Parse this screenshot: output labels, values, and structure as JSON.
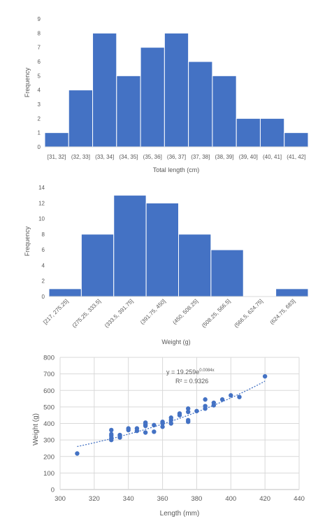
{
  "colors": {
    "bar": "#4472C4",
    "point": "#4472C4",
    "axis": "#d9d9d9",
    "text": "#595959"
  },
  "chart_data": [
    {
      "type": "bar",
      "categories": [
        "[31, 32]",
        "(32, 33]",
        "(33, 34]",
        "(34, 35]",
        "(35, 36]",
        "(36, 37]",
        "(37, 38]",
        "(38, 39]",
        "(39, 40]",
        "(40, 41]",
        "(41, 42]"
      ],
      "values": [
        1,
        4,
        8,
        5,
        7,
        8,
        6,
        5,
        2,
        2,
        1
      ],
      "ylim": [
        0,
        9
      ],
      "yticks": [
        0,
        1,
        2,
        3,
        4,
        5,
        6,
        7,
        8,
        9
      ],
      "xlabel": "Total length (cm)",
      "ylabel": "Frequency",
      "grid": false
    },
    {
      "type": "bar",
      "categories": [
        "[217, 275.25]",
        "(275.25, 333.5]",
        "(333.5, 391.75]",
        "(391.75, 450]",
        "(450, 508.25]",
        "(508.25, 566.5]",
        "(566.5, 624.75]",
        "(624.75, 683]"
      ],
      "values": [
        1,
        8,
        13,
        12,
        8,
        6,
        0,
        1
      ],
      "ylim": [
        0,
        14
      ],
      "yticks": [
        0,
        2,
        4,
        6,
        8,
        10,
        12,
        14
      ],
      "xlabel": "Weight (g)",
      "ylabel": "Frequency",
      "grid": false
    },
    {
      "type": "scatter",
      "points": [
        [
          310,
          218
        ],
        [
          330,
          300
        ],
        [
          330,
          310
        ],
        [
          330,
          325
        ],
        [
          330,
          335
        ],
        [
          330,
          360
        ],
        [
          335,
          315
        ],
        [
          335,
          325
        ],
        [
          335,
          330
        ],
        [
          340,
          360
        ],
        [
          340,
          370
        ],
        [
          345,
          355
        ],
        [
          345,
          370
        ],
        [
          350,
          345
        ],
        [
          350,
          385
        ],
        [
          350,
          395
        ],
        [
          350,
          405
        ],
        [
          355,
          350
        ],
        [
          355,
          390
        ],
        [
          360,
          380
        ],
        [
          360,
          400
        ],
        [
          360,
          405
        ],
        [
          360,
          410
        ],
        [
          365,
          400
        ],
        [
          365,
          420
        ],
        [
          365,
          435
        ],
        [
          370,
          450
        ],
        [
          370,
          460
        ],
        [
          375,
          410
        ],
        [
          375,
          420
        ],
        [
          375,
          470
        ],
        [
          375,
          490
        ],
        [
          380,
          475
        ],
        [
          385,
          490
        ],
        [
          385,
          505
        ],
        [
          385,
          545
        ],
        [
          390,
          510
        ],
        [
          390,
          525
        ],
        [
          395,
          545
        ],
        [
          400,
          570
        ],
        [
          405,
          560
        ],
        [
          420,
          685
        ]
      ],
      "trendline": {
        "type": "exponential",
        "a": 19.259,
        "b": 0.0084
      },
      "trendline_label": {
        "eq_main": "y = 19.259e",
        "eq_exp": "0.0084x",
        "r2": "R² = 0.9326"
      },
      "xlim": [
        300,
        440
      ],
      "ylim": [
        0,
        800
      ],
      "xticks": [
        300,
        320,
        340,
        360,
        380,
        400,
        420,
        440
      ],
      "yticks": [
        0,
        100,
        200,
        300,
        400,
        500,
        600,
        700,
        800
      ],
      "xlabel": "Length (mm)",
      "ylabel": "Weight (g)",
      "grid": true
    }
  ]
}
